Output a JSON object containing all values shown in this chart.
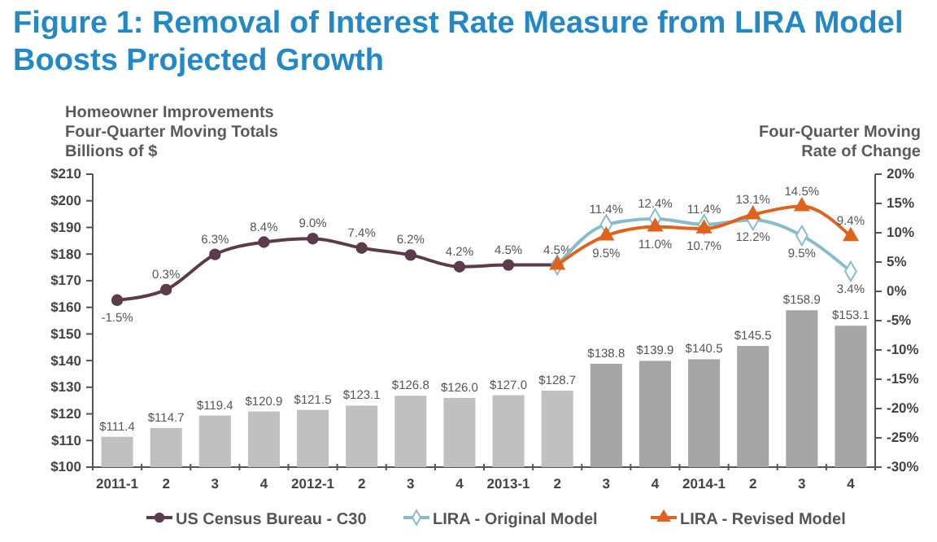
{
  "chart_data": {
    "type": "bar",
    "title": "Figure 1: Removal of Interest Rate Measure from LIRA Model\nBoosts Projected Growth",
    "ylabel": "Homeowner Improvements\nFour-Quarter Moving Totals\nBillions of $",
    "y2label": "Four-Quarter Moving\nRate of Change",
    "categories": [
      "2011-1",
      "2",
      "3",
      "4",
      "2012-1",
      "2",
      "3",
      "4",
      "2013-1",
      "2",
      "3",
      "4",
      "2014-1",
      "2",
      "3",
      "4"
    ],
    "series": [
      {
        "colors": [
          "#c0c0c0",
          "#c0c0c0",
          "#c0c0c0",
          "#c0c0c0",
          "#c0c0c0",
          "#c0c0c0",
          "#c0c0c0",
          "#c0c0c0",
          "#c0c0c0",
          "#c0c0c0",
          "#a6a6a6",
          "#a6a6a6",
          "#a6a6a6",
          "#a6a6a6",
          "#a6a6a6",
          "#a6a6a6"
        ],
        "values": [
          111.4,
          114.7,
          119.4,
          120.9,
          121.5,
          123.1,
          126.8,
          126.0,
          127.0,
          128.7,
          138.8,
          139.9,
          140.5,
          145.5,
          158.9,
          153.1
        ],
        "value_labels": [
          "$111.4",
          "$114.7",
          "$119.4",
          "$120.9",
          "$121.5",
          "$123.1",
          "$126.8",
          "$126.0",
          "$127.0",
          "$128.7",
          "$138.8",
          "$139.9",
          "$140.5",
          "$145.5",
          "$158.9",
          "$153.1"
        ]
      },
      {
        "type": "line",
        "axis": "y2",
        "name": "US Census Bureau - C30",
        "color": "#5b3b4c",
        "marker": "circle",
        "values": [
          -1.5,
          0.3,
          6.3,
          8.4,
          9.0,
          7.4,
          6.2,
          4.2,
          4.5,
          4.5,
          null,
          null,
          null,
          null,
          null,
          null
        ],
        "value_labels": [
          "-1.5%",
          "0.3%",
          "6.3%",
          "8.4%",
          "9.0%",
          "7.4%",
          "6.2%",
          "4.2%",
          "4.5%",
          "4.5%",
          null,
          null,
          null,
          null,
          null,
          null
        ]
      },
      {
        "type": "line",
        "axis": "y2",
        "name": "LIRA - Original Model",
        "color": "#86bccb",
        "marker": "diamond",
        "values": [
          null,
          null,
          null,
          null,
          null,
          null,
          null,
          null,
          null,
          4.5,
          11.4,
          12.4,
          11.4,
          12.2,
          9.5,
          3.4
        ],
        "value_labels": [
          null,
          null,
          null,
          null,
          null,
          null,
          null,
          null,
          null,
          null,
          "11.4%",
          "12.4%",
          "11.4%",
          "12.2%",
          "9.5%",
          "3.4%"
        ]
      },
      {
        "type": "line",
        "axis": "y2",
        "name": "LIRA - Revised Model",
        "color": "#e0621c",
        "marker": "triangle",
        "values": [
          null,
          null,
          null,
          null,
          null,
          null,
          null,
          null,
          null,
          4.5,
          9.5,
          11.0,
          10.7,
          13.1,
          14.5,
          9.4
        ],
        "value_labels": [
          null,
          null,
          null,
          null,
          null,
          null,
          null,
          null,
          null,
          null,
          "9.5%",
          "11.0%",
          "10.7%",
          "13.1%",
          "14.5%",
          "9.4%"
        ]
      }
    ],
    "ylim": [
      100,
      210
    ],
    "yticks": [
      {
        "value": 100,
        "label": "$100"
      },
      {
        "value": 110,
        "label": "$110"
      },
      {
        "value": 120,
        "label": "$120"
      },
      {
        "value": 130,
        "label": "$130"
      },
      {
        "value": 140,
        "label": "$140"
      },
      {
        "value": 150,
        "label": "$150"
      },
      {
        "value": 160,
        "label": "$160"
      },
      {
        "value": 170,
        "label": "$170"
      },
      {
        "value": 180,
        "label": "$180"
      },
      {
        "value": 190,
        "label": "$190"
      },
      {
        "value": 200,
        "label": "$200"
      },
      {
        "value": 210,
        "label": "$210"
      }
    ],
    "y2lim": [
      -30,
      20
    ],
    "y2ticks": [
      {
        "value": -30,
        "label": "-30%"
      },
      {
        "value": -25,
        "label": "-25%"
      },
      {
        "value": -20,
        "label": "-20%"
      },
      {
        "value": -15,
        "label": "-15%"
      },
      {
        "value": -10,
        "label": "-10%"
      },
      {
        "value": -5,
        "label": "-5%"
      },
      {
        "value": 0,
        "label": "0%"
      },
      {
        "value": 5,
        "label": "5%"
      },
      {
        "value": 10,
        "label": "10%"
      },
      {
        "value": 15,
        "label": "15%"
      },
      {
        "value": 20,
        "label": "20%"
      }
    ],
    "legend": "bottom"
  }
}
